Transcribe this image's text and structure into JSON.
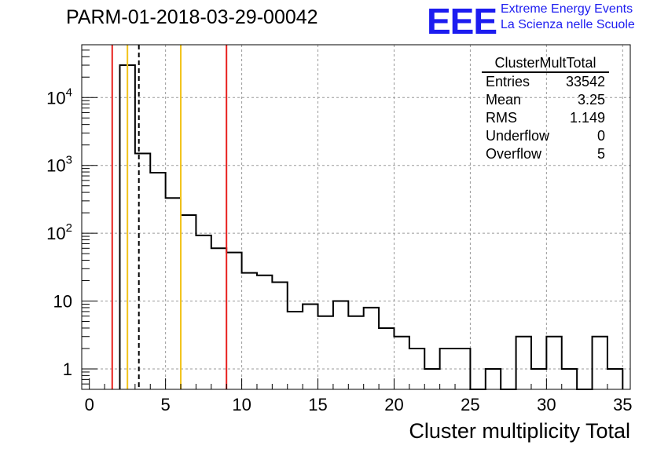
{
  "header": {
    "title": "PARM-01-2018-03-29-00042",
    "logo_text": "EEE",
    "logo_line1": "Extreme Energy Events",
    "logo_line2": "La Scienza nelle Scuole",
    "brand_color": "#1c1cf0"
  },
  "stats_box": {
    "title": "ClusterMultTotal",
    "rows": [
      {
        "label": "Entries",
        "value": "33542"
      },
      {
        "label": "Mean",
        "value": "3.25"
      },
      {
        "label": "RMS",
        "value": "1.149"
      },
      {
        "label": "Underflow",
        "value": "0"
      },
      {
        "label": "Overflow",
        "value": "5"
      }
    ]
  },
  "chart_data": {
    "type": "histogram",
    "title": "PARM-01-2018-03-29-00042",
    "xlabel": "Cluster multiplicity Total",
    "ylabel": "",
    "xlim": [
      -0.5,
      35.5
    ],
    "ylim": [
      0.5,
      60000
    ],
    "yscale": "log",
    "grid": true,
    "bin_width": 1,
    "bins": [
      {
        "x": 2.5,
        "count": 30000
      },
      {
        "x": 3.5,
        "count": 1500
      },
      {
        "x": 4.5,
        "count": 780
      },
      {
        "x": 5.5,
        "count": 330
      },
      {
        "x": 6.5,
        "count": 185
      },
      {
        "x": 7.5,
        "count": 93
      },
      {
        "x": 8.5,
        "count": 60
      },
      {
        "x": 9.5,
        "count": 52
      },
      {
        "x": 10.5,
        "count": 26
      },
      {
        "x": 11.5,
        "count": 24
      },
      {
        "x": 12.5,
        "count": 19
      },
      {
        "x": 13.5,
        "count": 7
      },
      {
        "x": 14.5,
        "count": 9
      },
      {
        "x": 15.5,
        "count": 6
      },
      {
        "x": 16.5,
        "count": 10
      },
      {
        "x": 17.5,
        "count": 6
      },
      {
        "x": 18.5,
        "count": 8
      },
      {
        "x": 19.5,
        "count": 4
      },
      {
        "x": 20.5,
        "count": 3
      },
      {
        "x": 21.5,
        "count": 2
      },
      {
        "x": 22.5,
        "count": 1
      },
      {
        "x": 23.5,
        "count": 2
      },
      {
        "x": 24.5,
        "count": 2
      },
      {
        "x": 25.5,
        "count": 0
      },
      {
        "x": 26.5,
        "count": 1
      },
      {
        "x": 27.5,
        "count": 0
      },
      {
        "x": 28.5,
        "count": 3
      },
      {
        "x": 29.5,
        "count": 1
      },
      {
        "x": 30.5,
        "count": 3
      },
      {
        "x": 31.5,
        "count": 1
      },
      {
        "x": 32.5,
        "count": 0
      },
      {
        "x": 33.5,
        "count": 3
      },
      {
        "x": 34.5,
        "count": 1
      }
    ],
    "x_ticks": [
      0,
      5,
      10,
      15,
      20,
      25,
      30,
      35
    ],
    "x_tick_labels": [
      "0",
      "5",
      "10",
      "15",
      "20",
      "25",
      "30",
      "35"
    ],
    "y_ticks": [
      1,
      10,
      100,
      1000,
      10000
    ],
    "y_tick_labels": [
      {
        "base": "1",
        "exp": ""
      },
      {
        "base": "10",
        "exp": ""
      },
      {
        "base": "10",
        "exp": "2"
      },
      {
        "base": "10",
        "exp": "3"
      },
      {
        "base": "10",
        "exp": "4"
      }
    ],
    "vertical_lines": [
      {
        "name": "red-line-low",
        "x": 1.5,
        "color": "#e8201e",
        "style": "solid"
      },
      {
        "name": "yellow-line-low",
        "x": 2.5,
        "color": "#f2c31a",
        "style": "solid"
      },
      {
        "name": "mean-line",
        "x": 3.25,
        "color": "#000000",
        "style": "dashed"
      },
      {
        "name": "yellow-line-high",
        "x": 6.0,
        "color": "#f2c31a",
        "style": "solid"
      },
      {
        "name": "red-line-high",
        "x": 9.0,
        "color": "#e8201e",
        "style": "solid"
      }
    ]
  }
}
